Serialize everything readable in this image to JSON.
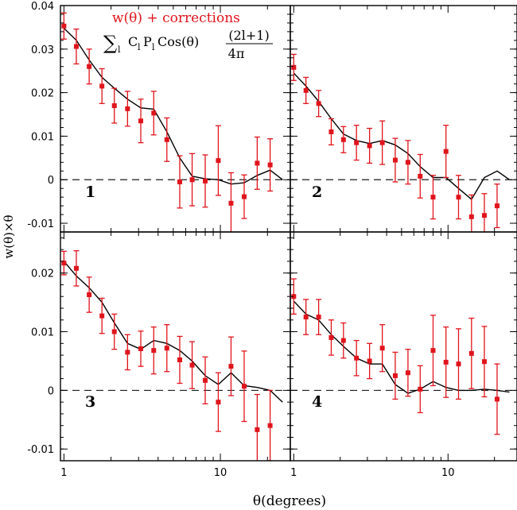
{
  "chart_data": {
    "type": "scatter",
    "layout": "2x2 panels",
    "xlabel": "θ(degrees)",
    "ylabel": "w(θ)×θ",
    "xscale": "log",
    "xlim": [
      0.95,
      28
    ],
    "xticklabels": [
      "1",
      "10"
    ],
    "ylim_top": [
      -0.012,
      0.04
    ],
    "ylim_bottom": [
      -0.012,
      0.027
    ],
    "yticks_top": [
      "0.04",
      "0.03",
      "0.02",
      "0.01",
      "0",
      "-0.01"
    ],
    "yticks_bottom": [
      "0.02",
      "0.01",
      "0",
      "-0.01"
    ],
    "legend": {
      "data_label": "w(θ) + corrections",
      "model_label_sum": "∑",
      "model_label_sub": "l",
      "model_label_text": "C",
      "model_label_text2": "P",
      "model_label_text3": "Cos(θ)",
      "model_label_num": "(2l+1)",
      "model_label_den": "4π",
      "data_color": "#e0141c",
      "model_color": "#000000"
    },
    "panels": [
      {
        "label": "1",
        "x": [
          1.0,
          1.2,
          1.45,
          1.75,
          2.1,
          2.55,
          3.1,
          3.75,
          4.55,
          5.5,
          6.6,
          8.0,
          9.7,
          11.7,
          14.2,
          17.2,
          20.8
        ],
        "y": [
          0.0353,
          0.0306,
          0.026,
          0.0215,
          0.017,
          0.0163,
          0.0135,
          0.0153,
          0.0092,
          -0.0005,
          0.0,
          -0.0003,
          0.0044,
          -0.0054,
          -0.0039,
          0.0038,
          0.0034
        ],
        "yerr": [
          0.003,
          0.004,
          0.004,
          0.004,
          0.004,
          0.004,
          0.005,
          0.005,
          0.005,
          0.006,
          0.006,
          0.006,
          0.008,
          0.007,
          0.005,
          0.006,
          0.006
        ],
        "model_x": [
          1.0,
          1.2,
          1.45,
          1.75,
          2.1,
          2.55,
          3.1,
          3.75,
          4.55,
          5.5,
          6.6,
          8.0,
          9.7,
          11.7,
          14.2,
          17.2,
          20.8,
          25.0
        ],
        "model_y": [
          0.0348,
          0.032,
          0.0275,
          0.0235,
          0.021,
          0.0185,
          0.0165,
          0.0162,
          0.011,
          0.005,
          0.0008,
          0.0002,
          0.0,
          -0.001,
          -0.0007,
          0.001,
          0.0022,
          0.0
        ]
      },
      {
        "label": "2",
        "x": [
          1.0,
          1.2,
          1.45,
          1.75,
          2.1,
          2.55,
          3.1,
          3.75,
          4.55,
          5.5,
          6.6,
          8.0,
          9.7,
          11.7,
          14.2,
          17.2,
          20.8
        ],
        "y": [
          0.0258,
          0.0205,
          0.0175,
          0.011,
          0.0092,
          0.0085,
          0.0078,
          0.0085,
          0.0045,
          0.004,
          0.0008,
          -0.004,
          0.0065,
          -0.004,
          -0.0085,
          -0.0082,
          -0.006
        ],
        "yerr": [
          0.003,
          0.003,
          0.003,
          0.003,
          0.003,
          0.004,
          0.004,
          0.005,
          0.005,
          0.005,
          0.005,
          0.005,
          0.006,
          0.005,
          0.005,
          0.005,
          0.005
        ],
        "model_x": [
          1.0,
          1.2,
          1.45,
          1.75,
          2.1,
          2.55,
          3.1,
          3.75,
          4.55,
          5.5,
          6.6,
          8.0,
          9.7,
          11.7,
          14.2,
          17.2,
          20.8,
          25.0
        ],
        "model_y": [
          0.0245,
          0.0215,
          0.018,
          0.014,
          0.0105,
          0.009,
          0.0083,
          0.009,
          0.008,
          0.006,
          0.003,
          0.0005,
          0.0005,
          -0.002,
          -0.0045,
          0.0005,
          0.002,
          0.0
        ]
      },
      {
        "label": "3",
        "x": [
          1.0,
          1.2,
          1.45,
          1.75,
          2.1,
          2.55,
          3.1,
          3.75,
          4.55,
          5.5,
          6.6,
          8.0,
          9.7,
          11.7,
          14.2,
          17.2,
          20.8
        ],
        "y": [
          0.0217,
          0.0208,
          0.0163,
          0.0127,
          0.01,
          0.0065,
          0.0071,
          0.0068,
          0.0072,
          0.0052,
          0.0043,
          0.0017,
          -0.002,
          0.0041,
          0.0007,
          -0.0067,
          -0.006
        ],
        "yerr": [
          0.002,
          0.003,
          0.003,
          0.003,
          0.003,
          0.003,
          0.003,
          0.004,
          0.004,
          0.004,
          0.004,
          0.004,
          0.005,
          0.005,
          0.006,
          0.006,
          0.006
        ],
        "model_x": [
          1.0,
          1.2,
          1.45,
          1.75,
          2.1,
          2.55,
          3.1,
          3.75,
          4.55,
          5.5,
          6.6,
          8.0,
          9.7,
          11.7,
          14.2,
          17.2,
          20.8,
          25.0
        ],
        "model_y": [
          0.022,
          0.0195,
          0.0175,
          0.015,
          0.0115,
          0.008,
          0.007,
          0.0085,
          0.008,
          0.0068,
          0.005,
          0.0025,
          0.001,
          0.003,
          0.0008,
          0.0005,
          0.0,
          -0.002
        ]
      },
      {
        "label": "4",
        "x": [
          1.0,
          1.2,
          1.45,
          1.75,
          2.1,
          2.55,
          3.1,
          3.75,
          4.55,
          5.5,
          6.6,
          8.0,
          9.7,
          11.7,
          14.2,
          17.2,
          20.8
        ],
        "y": [
          0.016,
          0.0125,
          0.0125,
          0.009,
          0.0085,
          0.0055,
          0.005,
          0.0072,
          0.0025,
          0.003,
          0.0002,
          0.0068,
          0.0048,
          0.0045,
          0.0063,
          0.0049,
          -0.0015
        ],
        "yerr": [
          0.003,
          0.003,
          0.003,
          0.003,
          0.003,
          0.003,
          0.003,
          0.004,
          0.004,
          0.004,
          0.004,
          0.006,
          0.006,
          0.006,
          0.006,
          0.006,
          0.006
        ],
        "model_x": [
          1.0,
          1.2,
          1.45,
          1.75,
          2.1,
          2.55,
          3.1,
          3.75,
          4.55,
          5.5,
          6.6,
          8.0,
          9.7,
          11.7,
          14.2,
          17.2,
          20.8,
          25.0
        ],
        "model_y": [
          0.0152,
          0.013,
          0.012,
          0.0095,
          0.0075,
          0.0055,
          0.0045,
          0.0045,
          0.001,
          -0.0005,
          0.0002,
          0.0015,
          0.0005,
          0.0,
          0.0,
          0.0002,
          0.0,
          -0.0003
        ]
      }
    ]
  }
}
